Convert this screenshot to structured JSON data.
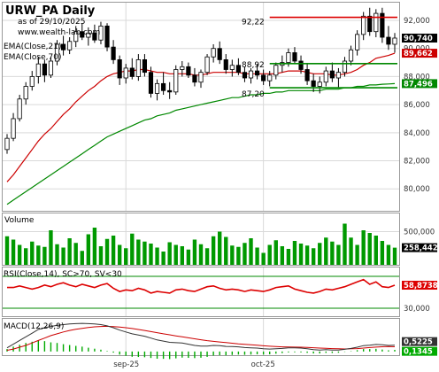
{
  "chart_data": {
    "type": "candlestick",
    "title": "URW_PA Daily",
    "subtitle": "as of 29/10/2025",
    "watermark": "www.wealth-lab.com",
    "colors": {
      "up": "#000000",
      "down": "#000000",
      "ema21": "#cc0000",
      "ema70": "#008800",
      "volume": "#009900",
      "rsi": "#dd0000",
      "macd": "#333333",
      "signal": "#cc0000",
      "hist": "#00aa00",
      "levels": "#008800",
      "resistance": "#dd0000",
      "grid": "#d9d9d9"
    },
    "price_panel": {
      "ylim": [
        78.5,
        93.2
      ],
      "ticks": [
        "92,000",
        "90,000",
        "88,000",
        "86,000",
        "84,000",
        "82,000",
        "80,000"
      ],
      "tick_values": [
        92,
        90,
        88,
        86,
        84,
        82,
        80
      ],
      "legend": [
        "EMA(Close,21)",
        "EMA(Close,70)"
      ],
      "last_close": "90,740",
      "last_ema21": "89,662",
      "last_ema70": "87,496",
      "last_values": [
        90.74,
        89.662,
        87.496
      ],
      "resistance": {
        "value": 92.22,
        "label": "92,22"
      },
      "levels": [
        {
          "value": 88.92,
          "label": "88,92"
        },
        {
          "value": 87.2,
          "label": "87,20"
        }
      ],
      "candles": [
        [
          82.8,
          83.9,
          82.5,
          83.6
        ],
        [
          83.6,
          85.4,
          83.4,
          85.0
        ],
        [
          85.0,
          86.7,
          84.8,
          86.4
        ],
        [
          86.4,
          87.6,
          86.0,
          87.3
        ],
        [
          87.3,
          88.4,
          87.0,
          88.0
        ],
        [
          88.0,
          89.4,
          87.5,
          88.9
        ],
        [
          88.9,
          89.2,
          87.6,
          88.1
        ],
        [
          88.1,
          89.4,
          87.9,
          89.1
        ],
        [
          89.1,
          90.6,
          88.8,
          90.3
        ],
        [
          90.3,
          90.9,
          89.5,
          89.9
        ],
        [
          89.9,
          90.8,
          89.6,
          90.5
        ],
        [
          90.5,
          91.6,
          90.1,
          91.2
        ],
        [
          91.2,
          91.8,
          90.6,
          90.8
        ],
        [
          90.8,
          91.5,
          90.2,
          91.1
        ],
        [
          91.1,
          91.7,
          90.4,
          90.6
        ],
        [
          90.6,
          91.9,
          90.3,
          91.6
        ],
        [
          91.6,
          91.8,
          89.8,
          90.1
        ],
        [
          90.1,
          90.6,
          88.9,
          89.2
        ],
        [
          89.2,
          89.5,
          87.4,
          87.9
        ],
        [
          87.9,
          88.9,
          87.5,
          88.6
        ],
        [
          88.6,
          89.3,
          87.8,
          88.0
        ],
        [
          88.0,
          89.6,
          87.7,
          89.2
        ],
        [
          89.2,
          89.6,
          88.0,
          88.3
        ],
        [
          88.3,
          88.7,
          86.5,
          86.8
        ],
        [
          86.8,
          87.8,
          86.3,
          87.5
        ],
        [
          87.5,
          88.3,
          86.7,
          87.0
        ],
        [
          87.0,
          87.6,
          86.4,
          86.9
        ],
        [
          86.9,
          88.8,
          86.7,
          88.5
        ],
        [
          88.5,
          89.1,
          88.0,
          88.7
        ],
        [
          88.7,
          89.0,
          87.9,
          88.1
        ],
        [
          88.1,
          88.6,
          87.3,
          87.6
        ],
        [
          87.6,
          88.5,
          87.2,
          88.3
        ],
        [
          88.3,
          89.6,
          88.1,
          89.4
        ],
        [
          89.4,
          90.3,
          89.0,
          90.0
        ],
        [
          90.0,
          90.5,
          88.9,
          89.2
        ],
        [
          89.2,
          89.6,
          88.2,
          88.5
        ],
        [
          88.5,
          89.2,
          88.0,
          88.8
        ],
        [
          88.8,
          89.3,
          88.1,
          88.3
        ],
        [
          88.3,
          88.7,
          87.6,
          87.9
        ],
        [
          87.9,
          88.6,
          87.5,
          88.4
        ],
        [
          88.4,
          88.9,
          87.8,
          88.1
        ],
        [
          88.1,
          88.5,
          87.4,
          87.7
        ],
        [
          87.7,
          88.4,
          87.3,
          88.1
        ],
        [
          88.1,
          89.0,
          87.8,
          88.8
        ],
        [
          88.8,
          89.5,
          88.3,
          89.0
        ],
        [
          89.0,
          90.0,
          88.7,
          89.7
        ],
        [
          89.7,
          90.1,
          88.9,
          89.1
        ],
        [
          89.1,
          89.5,
          88.2,
          88.5
        ],
        [
          88.5,
          88.9,
          87.4,
          87.7
        ],
        [
          87.7,
          88.2,
          86.9,
          87.3
        ],
        [
          87.3,
          88.0,
          86.8,
          87.6
        ],
        [
          87.6,
          88.7,
          87.3,
          88.4
        ],
        [
          88.4,
          89.0,
          87.6,
          87.9
        ],
        [
          87.9,
          88.6,
          87.2,
          88.3
        ],
        [
          88.3,
          89.4,
          88.0,
          89.1
        ],
        [
          89.1,
          90.2,
          88.8,
          89.9
        ],
        [
          89.9,
          91.3,
          89.5,
          91.0
        ],
        [
          91.0,
          92.6,
          90.6,
          92.3
        ],
        [
          92.3,
          92.9,
          90.9,
          91.2
        ],
        [
          91.2,
          92.8,
          90.8,
          92.5
        ],
        [
          92.5,
          92.9,
          90.4,
          90.8
        ],
        [
          90.8,
          91.6,
          89.9,
          90.3
        ],
        [
          90.3,
          91.1,
          89.7,
          90.74
        ]
      ],
      "ema21": [
        80.5,
        81.0,
        81.6,
        82.2,
        82.8,
        83.4,
        83.9,
        84.3,
        84.8,
        85.3,
        85.7,
        86.2,
        86.6,
        87.0,
        87.3,
        87.7,
        88.0,
        88.2,
        88.3,
        88.4,
        88.4,
        88.5,
        88.5,
        88.4,
        88.3,
        88.3,
        88.2,
        88.2,
        88.2,
        88.2,
        88.1,
        88.1,
        88.2,
        88.3,
        88.3,
        88.3,
        88.3,
        88.3,
        88.2,
        88.2,
        88.2,
        88.2,
        88.2,
        88.2,
        88.3,
        88.4,
        88.4,
        88.4,
        88.3,
        88.2,
        88.2,
        88.2,
        88.1,
        88.1,
        88.2,
        88.3,
        88.5,
        88.8,
        89.0,
        89.3,
        89.4,
        89.5,
        89.662
      ],
      "ema70": [
        78.9,
        79.2,
        79.5,
        79.8,
        80.1,
        80.4,
        80.7,
        81.0,
        81.3,
        81.6,
        81.9,
        82.2,
        82.5,
        82.8,
        83.1,
        83.4,
        83.7,
        83.9,
        84.1,
        84.3,
        84.5,
        84.7,
        84.9,
        85.0,
        85.2,
        85.3,
        85.4,
        85.6,
        85.7,
        85.8,
        85.9,
        86.0,
        86.1,
        86.2,
        86.3,
        86.4,
        86.5,
        86.5,
        86.6,
        86.7,
        86.7,
        86.8,
        86.8,
        86.9,
        86.9,
        87.0,
        87.0,
        87.0,
        87.0,
        87.0,
        87.0,
        87.1,
        87.1,
        87.1,
        87.2,
        87.2,
        87.3,
        87.3,
        87.4,
        87.4,
        87.45,
        87.47,
        87.496
      ]
    },
    "volume_panel": {
      "label": "Volume",
      "tick": "500,000",
      "tick_value": 500000,
      "last": "258,442",
      "last_value": 258442,
      "ylim": [
        0,
        760000
      ],
      "values": [
        430000,
        380000,
        300000,
        250000,
        350000,
        290000,
        270000,
        520000,
        310000,
        260000,
        400000,
        330000,
        210000,
        460000,
        560000,
        280000,
        390000,
        440000,
        300000,
        250000,
        470000,
        380000,
        350000,
        320000,
        260000,
        200000,
        340000,
        300000,
        280000,
        230000,
        380000,
        310000,
        250000,
        430000,
        500000,
        420000,
        290000,
        270000,
        330000,
        400000,
        260000,
        180000,
        300000,
        370000,
        280000,
        240000,
        360000,
        320000,
        290000,
        250000,
        330000,
        410000,
        350000,
        300000,
        620000,
        410000,
        300000,
        520000,
        480000,
        440000,
        360000,
        300000,
        258442
      ]
    },
    "rsi_panel": {
      "label": "RSI(Close,14), SC>70, SV<30",
      "tick": "30,000",
      "tick_value": 30,
      "last": "58,8738",
      "last_value": 58.8738,
      "ylim": [
        20,
        80
      ],
      "levels": [
        70,
        30
      ],
      "values": [
        56,
        56,
        58,
        56,
        54,
        56,
        59,
        57,
        60,
        62,
        59,
        57,
        60,
        58,
        56,
        59,
        61,
        55,
        51,
        53,
        52,
        55,
        53,
        49,
        51,
        50,
        49,
        53,
        54,
        52,
        51,
        54,
        57,
        58,
        55,
        53,
        54,
        53,
        51,
        53,
        52,
        51,
        53,
        56,
        57,
        58,
        54,
        52,
        50,
        49,
        51,
        54,
        53,
        55,
        57,
        60,
        63,
        66,
        60,
        63,
        57,
        56,
        58.87
      ]
    },
    "macd_panel": {
      "label": "MACD(12,26,9)",
      "macd_last": "0,5225",
      "hist_last": "0,1345",
      "last_values": [
        0.5225,
        0.1345
      ],
      "ylim": [
        -0.3,
        2.6
      ],
      "macd": [
        0.3,
        0.6,
        0.9,
        1.2,
        1.5,
        1.8,
        1.95,
        2.05,
        2.15,
        2.2,
        2.25,
        2.28,
        2.3,
        2.28,
        2.25,
        2.2,
        2.1,
        1.95,
        1.75,
        1.6,
        1.45,
        1.35,
        1.25,
        1.1,
        0.95,
        0.85,
        0.75,
        0.72,
        0.7,
        0.6,
        0.5,
        0.45,
        0.45,
        0.5,
        0.48,
        0.42,
        0.4,
        0.38,
        0.32,
        0.3,
        0.28,
        0.22,
        0.2,
        0.22,
        0.25,
        0.3,
        0.3,
        0.28,
        0.22,
        0.15,
        0.12,
        0.15,
        0.12,
        0.12,
        0.18,
        0.25,
        0.35,
        0.48,
        0.52,
        0.58,
        0.55,
        0.5,
        0.5225
      ],
      "signal": [
        0.1,
        0.2,
        0.35,
        0.5,
        0.7,
        0.9,
        1.1,
        1.3,
        1.45,
        1.6,
        1.72,
        1.82,
        1.9,
        1.97,
        2.02,
        2.05,
        2.06,
        2.04,
        2.0,
        1.95,
        1.88,
        1.8,
        1.72,
        1.63,
        1.54,
        1.45,
        1.37,
        1.28,
        1.2,
        1.12,
        1.04,
        0.96,
        0.89,
        0.83,
        0.78,
        0.73,
        0.68,
        0.63,
        0.59,
        0.55,
        0.51,
        0.47,
        0.43,
        0.4,
        0.38,
        0.37,
        0.36,
        0.35,
        0.33,
        0.31,
        0.28,
        0.26,
        0.24,
        0.22,
        0.21,
        0.22,
        0.24,
        0.28,
        0.32,
        0.36,
        0.39,
        0.4,
        0.388
      ]
    },
    "x_labels": [
      {
        "label": "sep-25",
        "index": 19
      },
      {
        "label": "oct-25",
        "index": 41
      }
    ]
  }
}
